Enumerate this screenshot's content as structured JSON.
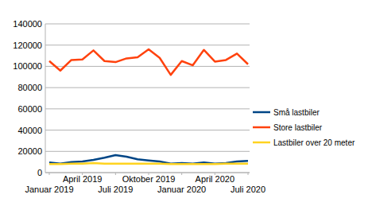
{
  "chart_data": {
    "type": "line",
    "categories": [
      "Januar 2019",
      null,
      null,
      "April 2019",
      null,
      null,
      "Juli 2019",
      null,
      null,
      "Oktober 2019",
      null,
      null,
      "Januar 2020",
      null,
      null,
      "April 2020",
      null,
      null,
      "Juli 2020"
    ],
    "series": [
      {
        "name": "Små lastbiler",
        "color": "#004586",
        "values": [
          9500,
          8500,
          10000,
          10500,
          12000,
          14000,
          16500,
          15000,
          12500,
          11500,
          10500,
          8500,
          9000,
          8500,
          9500,
          8500,
          9000,
          10500,
          11000
        ]
      },
      {
        "name": "Store lastbiler",
        "color": "#ff420e",
        "values": [
          105000,
          96000,
          106000,
          106500,
          115000,
          105000,
          104000,
          107500,
          108500,
          116000,
          108000,
          92000,
          105000,
          101000,
          115500,
          104500,
          106000,
          112000,
          102000
        ]
      },
      {
        "name": "Lastbiler over 20 meter",
        "color": "#ffd320",
        "values": [
          8000,
          8000,
          8500,
          8500,
          9000,
          8500,
          8500,
          8500,
          8500,
          8500,
          8500,
          8000,
          8000,
          8000,
          8000,
          8000,
          8500,
          8500,
          8500
        ]
      }
    ],
    "ylim": [
      0,
      140000
    ],
    "yticks": [
      0,
      20000,
      40000,
      60000,
      80000,
      100000,
      120000,
      140000
    ],
    "grid": true,
    "legend": "right"
  }
}
